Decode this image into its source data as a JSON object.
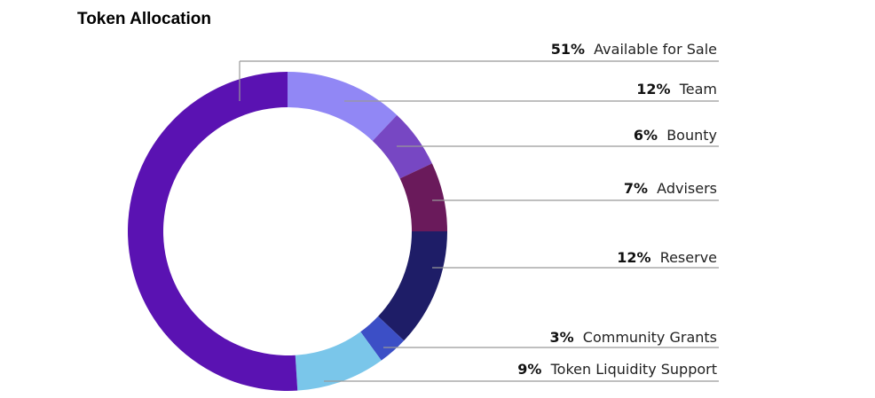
{
  "chart_data": {
    "type": "pie",
    "donut": true,
    "title": "Token Allocation",
    "slices": [
      {
        "label": "Team",
        "value": 12,
        "pct_text": "12%",
        "color": "#9187F5"
      },
      {
        "label": "Bounty",
        "value": 6,
        "pct_text": "6%",
        "color": "#7747C3"
      },
      {
        "label": "Advisers",
        "value": 7,
        "pct_text": "7%",
        "color": "#6A1A5B"
      },
      {
        "label": "Reserve",
        "value": 12,
        "pct_text": "12%",
        "color": "#1E1D67"
      },
      {
        "label": "Community Grants",
        "value": 3,
        "pct_text": "3%",
        "color": "#3C4FC6"
      },
      {
        "label": "Token Liquidity Support",
        "value": 9,
        "pct_text": "9%",
        "color": "#7AC6EA"
      },
      {
        "label": "Available for Sale",
        "value": 51,
        "pct_text": "51%",
        "color": "#5A12B2"
      }
    ]
  }
}
